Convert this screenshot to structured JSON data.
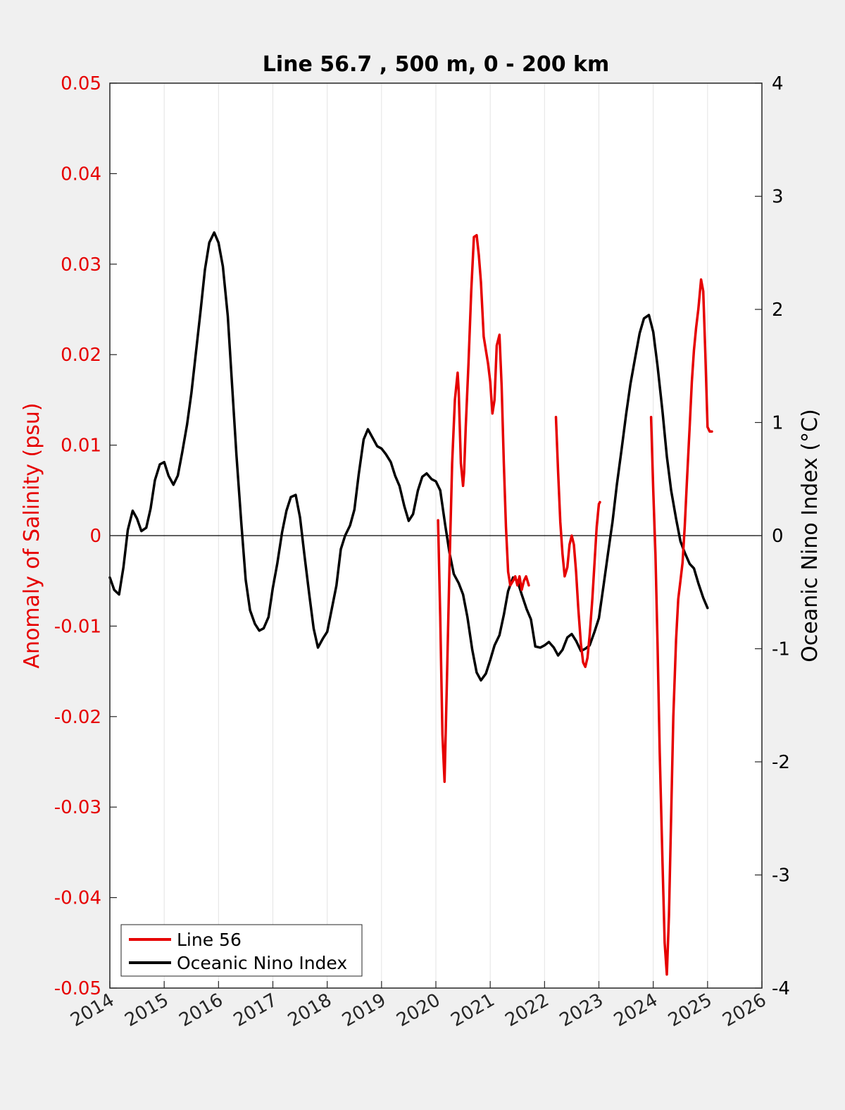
{
  "chart_data": {
    "type": "line",
    "title": "Line 56.7 , 500 m, 0 - 200 km",
    "ylabel": "Anomaly of Salinity (psu)",
    "ylabel_right": "Oceanic Nino Index (°C)",
    "xlim": [
      2014,
      2026
    ],
    "ylim": [
      -0.05,
      0.05
    ],
    "ylim_right": [
      -4,
      4
    ],
    "x_ticks": [
      "2014",
      "2015",
      "2016",
      "2017",
      "2018",
      "2019",
      "2020",
      "2021",
      "2022",
      "2023",
      "2024",
      "2025",
      "2026"
    ],
    "y_ticks_left": [
      "0.05",
      "0.04",
      "0.03",
      "0.02",
      "0.01",
      "0",
      "-0.01",
      "-0.02",
      "-0.03",
      "-0.04",
      "-0.05"
    ],
    "y_ticks_right": [
      "4",
      "3",
      "2",
      "1",
      "0",
      "-1",
      "-2",
      "-3",
      "-4"
    ],
    "grid": "vertical",
    "legend_position": "bottom-left",
    "colors": {
      "line56": "#e60000",
      "oni": "#000000",
      "left_axis": "#e60000"
    },
    "series": [
      {
        "name": "Line 56",
        "axis": "left",
        "segments": [
          {
            "x": [
              2020.04,
              2020.08,
              2020.12,
              2020.16,
              2020.2,
              2020.25,
              2020.3,
              2020.35,
              2020.4,
              2020.42,
              2020.46,
              2020.5,
              2020.52,
              2020.55,
              2020.6,
              2020.65,
              2020.7,
              2020.75,
              2020.79,
              2020.83,
              2020.88,
              2020.92,
              2020.96,
              2021.0,
              2021.04,
              2021.08,
              2021.12,
              2021.17,
              2021.21,
              2021.25,
              2021.29,
              2021.33,
              2021.37,
              2021.42,
              2021.46,
              2021.5,
              2021.54,
              2021.58,
              2021.62,
              2021.66,
              2021.71
            ],
            "y": [
              0.0017,
              -0.009,
              -0.022,
              -0.0272,
              -0.017,
              -0.0035,
              0.008,
              0.015,
              0.018,
              0.016,
              0.008,
              0.0055,
              0.007,
              0.012,
              0.019,
              0.027,
              0.033,
              0.0332,
              0.031,
              0.028,
              0.022,
              0.0205,
              0.019,
              0.017,
              0.0135,
              0.015,
              0.021,
              0.0222,
              0.0165,
              0.008,
              0.001,
              -0.004,
              -0.0055,
              -0.005,
              -0.0045,
              -0.0055,
              -0.0045,
              -0.006,
              -0.005,
              -0.0045,
              -0.0055
            ]
          },
          {
            "x": [
              2022.21,
              2022.25,
              2022.29,
              2022.33,
              2022.37,
              2022.42,
              2022.46,
              2022.5,
              2022.54,
              2022.58,
              2022.62,
              2022.67,
              2022.71,
              2022.75,
              2022.79,
              2022.83,
              2022.88,
              2022.92,
              2022.96,
              2023.0,
              2023.02
            ],
            "y": [
              0.0131,
              0.007,
              0.0015,
              -0.002,
              -0.0045,
              -0.0035,
              -0.001,
              0,
              -0.001,
              -0.004,
              -0.008,
              -0.012,
              -0.014,
              -0.0145,
              -0.0135,
              -0.011,
              -0.007,
              -0.003,
              0.001,
              0.0035,
              0.0037
            ]
          },
          {
            "x": [
              2023.96,
              2024.0,
              2024.04,
              2024.08,
              2024.12,
              2024.17,
              2024.21,
              2024.25,
              2024.29,
              2024.33,
              2024.37,
              2024.42,
              2024.46,
              2024.5,
              2024.54,
              2024.58,
              2024.62,
              2024.67,
              2024.71,
              2024.75,
              2024.79,
              2024.83,
              2024.88,
              2024.92,
              2024.96,
              2025.0,
              2025.04,
              2025.08
            ],
            "y": [
              0.0131,
              0.005,
              -0.002,
              -0.012,
              -0.024,
              -0.036,
              -0.045,
              -0.0485,
              -0.042,
              -0.031,
              -0.02,
              -0.0115,
              -0.007,
              -0.005,
              -0.003,
              0.001,
              0.006,
              0.012,
              0.017,
              0.0205,
              0.023,
              0.025,
              0.0283,
              0.027,
              0.02,
              0.012,
              0.0115,
              0.0115
            ]
          }
        ]
      },
      {
        "name": "Oceanic Nino Index",
        "axis": "right",
        "x": [
          2014.0,
          2014.08,
          2014.17,
          2014.25,
          2014.33,
          2014.42,
          2014.5,
          2014.58,
          2014.67,
          2014.75,
          2014.83,
          2014.92,
          2015.0,
          2015.08,
          2015.17,
          2015.25,
          2015.33,
          2015.42,
          2015.5,
          2015.58,
          2015.67,
          2015.75,
          2015.83,
          2015.92,
          2016.0,
          2016.08,
          2016.17,
          2016.25,
          2016.33,
          2016.42,
          2016.5,
          2016.58,
          2016.67,
          2016.75,
          2016.83,
          2016.92,
          2017.0,
          2017.08,
          2017.17,
          2017.25,
          2017.33,
          2017.42,
          2017.5,
          2017.58,
          2017.67,
          2017.75,
          2017.83,
          2017.92,
          2018.0,
          2018.08,
          2018.17,
          2018.25,
          2018.33,
          2018.42,
          2018.5,
          2018.58,
          2018.67,
          2018.75,
          2018.83,
          2018.92,
          2019.0,
          2019.08,
          2019.17,
          2019.25,
          2019.33,
          2019.42,
          2019.5,
          2019.58,
          2019.67,
          2019.75,
          2019.83,
          2019.92,
          2020.0,
          2020.08,
          2020.17,
          2020.25,
          2020.33,
          2020.42,
          2020.5,
          2020.58,
          2020.67,
          2020.75,
          2020.83,
          2020.92,
          2021.0,
          2021.08,
          2021.17,
          2021.25,
          2021.33,
          2021.42,
          2021.5,
          2021.58,
          2021.67,
          2021.75,
          2021.83,
          2021.92,
          2022.0,
          2022.08,
          2022.17,
          2022.25,
          2022.33,
          2022.42,
          2022.5,
          2022.58,
          2022.67,
          2022.75,
          2022.83,
          2022.92,
          2023.0,
          2023.08,
          2023.17,
          2023.25,
          2023.33,
          2023.42,
          2023.5,
          2023.58,
          2023.67,
          2023.75,
          2023.83,
          2023.92,
          2024.0,
          2024.08,
          2024.17,
          2024.25,
          2024.33,
          2024.42,
          2024.5,
          2024.58,
          2024.67,
          2024.75,
          2024.83,
          2024.92,
          2025.0
        ],
        "y": [
          -0.37,
          -0.48,
          -0.52,
          -0.28,
          0.05,
          0.22,
          0.15,
          0.04,
          0.07,
          0.24,
          0.49,
          0.63,
          0.65,
          0.53,
          0.45,
          0.53,
          0.73,
          0.98,
          1.26,
          1.6,
          1.99,
          2.35,
          2.59,
          2.68,
          2.59,
          2.38,
          1.94,
          1.33,
          0.71,
          0.11,
          -0.39,
          -0.66,
          -0.78,
          -0.84,
          -0.82,
          -0.72,
          -0.46,
          -0.25,
          0.03,
          0.22,
          0.34,
          0.36,
          0.16,
          -0.17,
          -0.52,
          -0.82,
          -0.99,
          -0.91,
          -0.85,
          -0.66,
          -0.44,
          -0.12,
          0.0,
          0.09,
          0.23,
          0.54,
          0.85,
          0.94,
          0.87,
          0.79,
          0.77,
          0.72,
          0.65,
          0.53,
          0.44,
          0.26,
          0.13,
          0.19,
          0.4,
          0.52,
          0.55,
          0.5,
          0.48,
          0.4,
          0.1,
          -0.15,
          -0.34,
          -0.42,
          -0.52,
          -0.72,
          -1.01,
          -1.21,
          -1.28,
          -1.22,
          -1.1,
          -0.97,
          -0.88,
          -0.7,
          -0.49,
          -0.37,
          -0.4,
          -0.52,
          -0.65,
          -0.74,
          -0.98,
          -0.99,
          -0.97,
          -0.94,
          -0.99,
          -1.06,
          -1.01,
          -0.9,
          -0.87,
          -0.93,
          -1.02,
          -1.0,
          -0.97,
          -0.85,
          -0.73,
          -0.46,
          -0.15,
          0.12,
          0.45,
          0.77,
          1.07,
          1.34,
          1.58,
          1.79,
          1.92,
          1.95,
          1.8,
          1.5,
          1.1,
          0.7,
          0.4,
          0.15,
          -0.05,
          -0.15,
          -0.25,
          -0.29,
          -0.42,
          -0.55,
          -0.64
        ]
      }
    ]
  },
  "legend": {
    "items": [
      {
        "label": "Line 56",
        "color": "#e60000"
      },
      {
        "label": "Oceanic Nino Index",
        "color": "#000000"
      }
    ]
  }
}
